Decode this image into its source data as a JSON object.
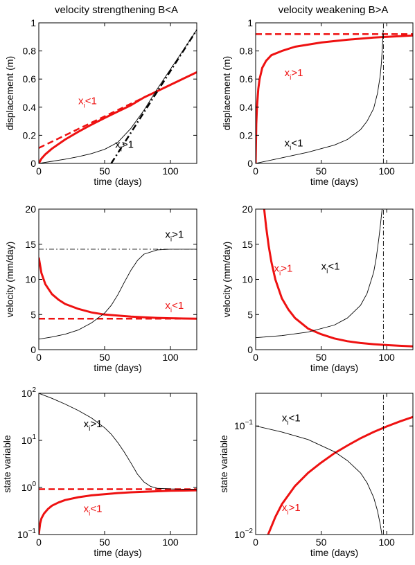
{
  "figure": {
    "titles": {
      "left": "velocity strengthening B<A",
      "right": "velocity weakening B>A"
    }
  },
  "chart_data": [
    {
      "type": "line",
      "panel": "displacement-strengthening",
      "title": "velocity strengthening B<A",
      "xlabel": "time (days)",
      "ylabel": "displacement (m)",
      "xlim": [
        0,
        120
      ],
      "ylim": [
        0,
        1
      ],
      "yscale": "linear",
      "xticks": [
        {
          "v": 0,
          "label": "0"
        },
        {
          "v": 50,
          "label": "50"
        },
        {
          "v": 100,
          "label": "100"
        }
      ],
      "yticks": [
        {
          "v": 0,
          "label": "0"
        },
        {
          "v": 0.2,
          "label": "0.2"
        },
        {
          "v": 0.4,
          "label": "0.4"
        },
        {
          "v": 0.6,
          "label": "0.6"
        },
        {
          "v": 0.8,
          "label": "0.8"
        },
        {
          "v": 1,
          "label": "1"
        }
      ],
      "grid": false,
      "series": [
        {
          "color": "#ee1111",
          "width": 3,
          "dash": "",
          "x": [
            0,
            2,
            5,
            10,
            20,
            30,
            40,
            50,
            60,
            70,
            80,
            90,
            100,
            110,
            120
          ],
          "y": [
            0,
            0.034,
            0.065,
            0.105,
            0.17,
            0.225,
            0.276,
            0.323,
            0.369,
            0.414,
            0.47,
            0.514,
            0.559,
            0.604,
            0.649
          ]
        },
        {
          "color": "#ee1111",
          "width": 2.5,
          "dash": "9,5",
          "x": [
            0,
            30,
            60,
            90
          ],
          "y": [
            0.11,
            0.245,
            0.38,
            0.515
          ]
        },
        {
          "color": "#000000",
          "width": 0.9,
          "dash": "",
          "x": [
            0,
            10,
            20,
            30,
            40,
            50,
            60,
            70,
            80,
            90,
            100,
            110,
            120
          ],
          "y": [
            0,
            0.015,
            0.03,
            0.048,
            0.07,
            0.1,
            0.15,
            0.25,
            0.38,
            0.53,
            0.67,
            0.81,
            0.95
          ]
        },
        {
          "color": "#000000",
          "width": 2.5,
          "dash": "9,4,2,4",
          "x": [
            55,
            120
          ],
          "y": [
            0,
            0.95
          ]
        }
      ],
      "annotations": [
        {
          "main": "x",
          "sub": "i",
          "rest": "<1",
          "color": "#ee1111",
          "x": 30,
          "y": 0.42
        },
        {
          "main": "x",
          "sub": "i",
          "rest": ">1",
          "color": "#000000",
          "x": 58,
          "y": 0.11
        }
      ]
    },
    {
      "type": "line",
      "panel": "displacement-weakening",
      "title": "velocity weakening B>A",
      "xlabel": "time (days)",
      "ylabel": "displacement (m)",
      "xlim": [
        0,
        120
      ],
      "ylim": [
        0,
        1
      ],
      "yscale": "linear",
      "xticks": [
        {
          "v": 0,
          "label": "0"
        },
        {
          "v": 50,
          "label": "50"
        },
        {
          "v": 100,
          "label": "100"
        }
      ],
      "yticks": [
        {
          "v": 0,
          "label": "0"
        },
        {
          "v": 0.2,
          "label": "0.2"
        },
        {
          "v": 0.4,
          "label": "0.4"
        },
        {
          "v": 0.6,
          "label": "0.6"
        },
        {
          "v": 0.8,
          "label": "0.8"
        },
        {
          "v": 1,
          "label": "1"
        }
      ],
      "grid": false,
      "series": [
        {
          "color": "#ee1111",
          "width": 3,
          "dash": "",
          "x": [
            0,
            0.5,
            1,
            2,
            3,
            5,
            8,
            12,
            20,
            30,
            50,
            70,
            90,
            120
          ],
          "y": [
            0,
            0.28,
            0.4,
            0.53,
            0.6,
            0.68,
            0.73,
            0.77,
            0.8,
            0.83,
            0.86,
            0.88,
            0.895,
            0.91
          ]
        },
        {
          "color": "#ee1111",
          "width": 2.5,
          "dash": "9,5",
          "x": [
            0,
            120
          ],
          "y": [
            0.92,
            0.92
          ]
        },
        {
          "color": "#000000",
          "width": 0.9,
          "dash": "",
          "x": [
            0,
            20,
            40,
            60,
            70,
            80,
            85,
            90,
            93,
            95,
            96,
            96.8,
            97.3
          ],
          "y": [
            0,
            0.04,
            0.08,
            0.13,
            0.17,
            0.24,
            0.3,
            0.39,
            0.5,
            0.62,
            0.72,
            0.85,
            0.95
          ]
        },
        {
          "color": "#000000",
          "width": 0.9,
          "dash": "7,3,2,3",
          "x": [
            97.5,
            97.5
          ],
          "y": [
            0,
            1
          ]
        }
      ],
      "annotations": [
        {
          "main": "x",
          "sub": "i",
          "rest": ">1",
          "color": "#ee1111",
          "x": 22,
          "y": 0.62
        },
        {
          "main": "x",
          "sub": "i",
          "rest": "<1",
          "color": "#000000",
          "x": 22,
          "y": 0.12
        }
      ]
    },
    {
      "type": "line",
      "panel": "velocity-strengthening",
      "xlabel": "time (days)",
      "ylabel": "velocity (mm/day)",
      "xlim": [
        0,
        120
      ],
      "ylim": [
        0,
        20
      ],
      "yscale": "linear",
      "xticks": [
        {
          "v": 0,
          "label": "0"
        },
        {
          "v": 50,
          "label": "50"
        },
        {
          "v": 100,
          "label": "100"
        }
      ],
      "yticks": [
        {
          "v": 0,
          "label": "0"
        },
        {
          "v": 5,
          "label": "5"
        },
        {
          "v": 10,
          "label": "10"
        },
        {
          "v": 15,
          "label": "15"
        },
        {
          "v": 20,
          "label": "20"
        }
      ],
      "grid": false,
      "series": [
        {
          "color": "#ee1111",
          "width": 3,
          "dash": "",
          "x": [
            0,
            2,
            5,
            10,
            15,
            20,
            30,
            40,
            50,
            60,
            70,
            80,
            90,
            100,
            110,
            120
          ],
          "y": [
            13.1,
            10.9,
            9.3,
            7.9,
            7.1,
            6.5,
            5.8,
            5.3,
            5.0,
            4.85,
            4.7,
            4.6,
            4.52,
            4.47,
            4.43,
            4.4
          ]
        },
        {
          "color": "#ee1111",
          "width": 2.5,
          "dash": "9,5",
          "x": [
            0,
            120
          ],
          "y": [
            4.4,
            4.4
          ]
        },
        {
          "color": "#000000",
          "width": 0.9,
          "dash": "",
          "x": [
            0,
            10,
            20,
            30,
            40,
            50,
            55,
            60,
            65,
            70,
            75,
            80,
            90,
            100,
            110,
            120
          ],
          "y": [
            1.5,
            1.8,
            2.2,
            2.8,
            3.8,
            5.2,
            6.3,
            7.8,
            9.6,
            11.3,
            12.7,
            13.6,
            14.2,
            14.3,
            14.3,
            14.3
          ]
        },
        {
          "color": "#000000",
          "width": 0.9,
          "dash": "7,3,2,3",
          "x": [
            0,
            120
          ],
          "y": [
            14.3,
            14.3
          ]
        }
      ],
      "annotations": [
        {
          "main": "x",
          "sub": "i",
          "rest": ">1",
          "color": "#000000",
          "x": 96,
          "y": 15.9
        },
        {
          "main": "x",
          "sub": "i",
          "rest": "<1",
          "color": "#ee1111",
          "x": 96,
          "y": 5.8
        }
      ]
    },
    {
      "type": "line",
      "panel": "velocity-weakening",
      "xlabel": "time (days)",
      "ylabel": "velocity (mm/day)",
      "xlim": [
        0,
        120
      ],
      "ylim": [
        0,
        20
      ],
      "yscale": "linear",
      "xticks": [
        {
          "v": 0,
          "label": "0"
        },
        {
          "v": 50,
          "label": "50"
        },
        {
          "v": 100,
          "label": "100"
        }
      ],
      "yticks": [
        {
          "v": 0,
          "label": "0"
        },
        {
          "v": 5,
          "label": "5"
        },
        {
          "v": 10,
          "label": "10"
        },
        {
          "v": 15,
          "label": "15"
        },
        {
          "v": 20,
          "label": "20"
        }
      ],
      "grid": false,
      "series": [
        {
          "color": "#ee1111",
          "width": 3,
          "dash": "",
          "x": [
            6.5,
            8,
            10,
            12,
            15,
            20,
            25,
            30,
            40,
            50,
            60,
            70,
            80,
            90,
            100,
            110,
            120
          ],
          "y": [
            20,
            17.5,
            14.7,
            12.5,
            10,
            7.3,
            5.7,
            4.5,
            3.0,
            2.2,
            1.6,
            1.2,
            0.95,
            0.78,
            0.65,
            0.55,
            0.47
          ]
        },
        {
          "color": "#000000",
          "width": 0.9,
          "dash": "",
          "x": [
            0,
            20,
            40,
            60,
            70,
            80,
            85,
            90,
            92,
            94,
            95.5,
            96.5
          ],
          "y": [
            1.7,
            2.0,
            2.5,
            3.5,
            4.5,
            6.3,
            8.0,
            11.0,
            13.0,
            15.8,
            18.3,
            20
          ]
        },
        {
          "color": "#000000",
          "width": 0.9,
          "dash": "7,3,2,3",
          "x": [
            97.5,
            97.5
          ],
          "y": [
            0,
            20
          ]
        }
      ],
      "annotations": [
        {
          "main": "x",
          "sub": "i",
          "rest": ">1",
          "color": "#ee1111",
          "x": 14,
          "y": 11.1
        },
        {
          "main": "x",
          "sub": "i",
          "rest": "<1",
          "color": "#000000",
          "x": 50,
          "y": 11.4
        }
      ]
    },
    {
      "type": "line",
      "panel": "state-strengthening",
      "xlabel": "time (days)",
      "ylabel": "state variable",
      "xlim": [
        0,
        120
      ],
      "ylim": [
        0.1,
        100
      ],
      "yscale": "log",
      "xticks": [
        {
          "v": 0,
          "label": "0"
        },
        {
          "v": 50,
          "label": "50"
        },
        {
          "v": 100,
          "label": "100"
        }
      ],
      "yticks": [
        {
          "v": 0.1,
          "base": "10",
          "exp": "−1"
        },
        {
          "v": 1,
          "base": "10",
          "exp": "0"
        },
        {
          "v": 10,
          "base": "10",
          "exp": "1"
        },
        {
          "v": 100,
          "base": "10",
          "exp": "2"
        }
      ],
      "grid": false,
      "series": [
        {
          "color": "#ee1111",
          "width": 3,
          "dash": "",
          "x": [
            0,
            1,
            2,
            4,
            7,
            10,
            15,
            20,
            30,
            40,
            50,
            60,
            70,
            80,
            90,
            100,
            110,
            120
          ],
          "y": [
            0.1,
            0.17,
            0.22,
            0.28,
            0.35,
            0.41,
            0.48,
            0.54,
            0.62,
            0.68,
            0.72,
            0.76,
            0.79,
            0.81,
            0.83,
            0.85,
            0.86,
            0.87
          ]
        },
        {
          "color": "#ee1111",
          "width": 2.5,
          "dash": "9,5",
          "x": [
            0,
            120
          ],
          "y": [
            0.92,
            0.92
          ]
        },
        {
          "color": "#000000",
          "width": 0.9,
          "dash": "",
          "x": [
            0,
            10,
            20,
            30,
            40,
            50,
            55,
            60,
            65,
            70,
            75,
            80,
            85,
            90,
            100,
            110,
            120
          ],
          "y": [
            100,
            78,
            59,
            43,
            30,
            18.5,
            13.5,
            9,
            5.6,
            3.3,
            1.9,
            1.3,
            1.05,
            0.96,
            0.93,
            0.92,
            0.92
          ]
        }
      ],
      "annotations": [
        {
          "main": "x",
          "sub": "i",
          "rest": ">1",
          "color": "#000000",
          "x": 34,
          "y": 19
        },
        {
          "main": "x",
          "sub": "i",
          "rest": "<1",
          "color": "#ee1111",
          "x": 34,
          "y": 0.3
        }
      ]
    },
    {
      "type": "line",
      "panel": "state-weakening",
      "xlabel": "time (days)",
      "ylabel": "state variable",
      "xlim": [
        0,
        120
      ],
      "ylim": [
        0.01,
        0.2
      ],
      "yscale": "log",
      "xticks": [
        {
          "v": 0,
          "label": "0"
        },
        {
          "v": 50,
          "label": "50"
        },
        {
          "v": 100,
          "label": "100"
        }
      ],
      "yticks": [
        {
          "v": 0.01,
          "base": "10",
          "exp": "−2"
        },
        {
          "v": 0.1,
          "base": "10",
          "exp": "−1"
        }
      ],
      "grid": false,
      "series": [
        {
          "color": "#ee1111",
          "width": 3,
          "dash": "",
          "x": [
            9.5,
            15,
            20,
            30,
            40,
            50,
            60,
            70,
            80,
            90,
            100,
            110,
            120
          ],
          "y": [
            0.01,
            0.0145,
            0.019,
            0.028,
            0.037,
            0.046,
            0.056,
            0.066,
            0.077,
            0.088,
            0.099,
            0.11,
            0.121
          ]
        },
        {
          "color": "#000000",
          "width": 0.9,
          "dash": "",
          "x": [
            0,
            20,
            40,
            60,
            70,
            80,
            85,
            90,
            93,
            95,
            96.3
          ],
          "y": [
            0.1,
            0.088,
            0.075,
            0.058,
            0.048,
            0.037,
            0.03,
            0.022,
            0.0165,
            0.0125,
            0.01
          ]
        },
        {
          "color": "#000000",
          "width": 0.9,
          "dash": "7,3,2,3",
          "x": [
            97.5,
            97.5
          ],
          "y": [
            0.01,
            0.2
          ]
        }
      ],
      "annotations": [
        {
          "main": "x",
          "sub": "i",
          "rest": "<1",
          "color": "#000000",
          "x": 20,
          "y": 0.11
        },
        {
          "main": "x",
          "sub": "i",
          "rest": ">1",
          "color": "#ee1111",
          "x": 20,
          "y": 0.0165
        }
      ]
    }
  ]
}
